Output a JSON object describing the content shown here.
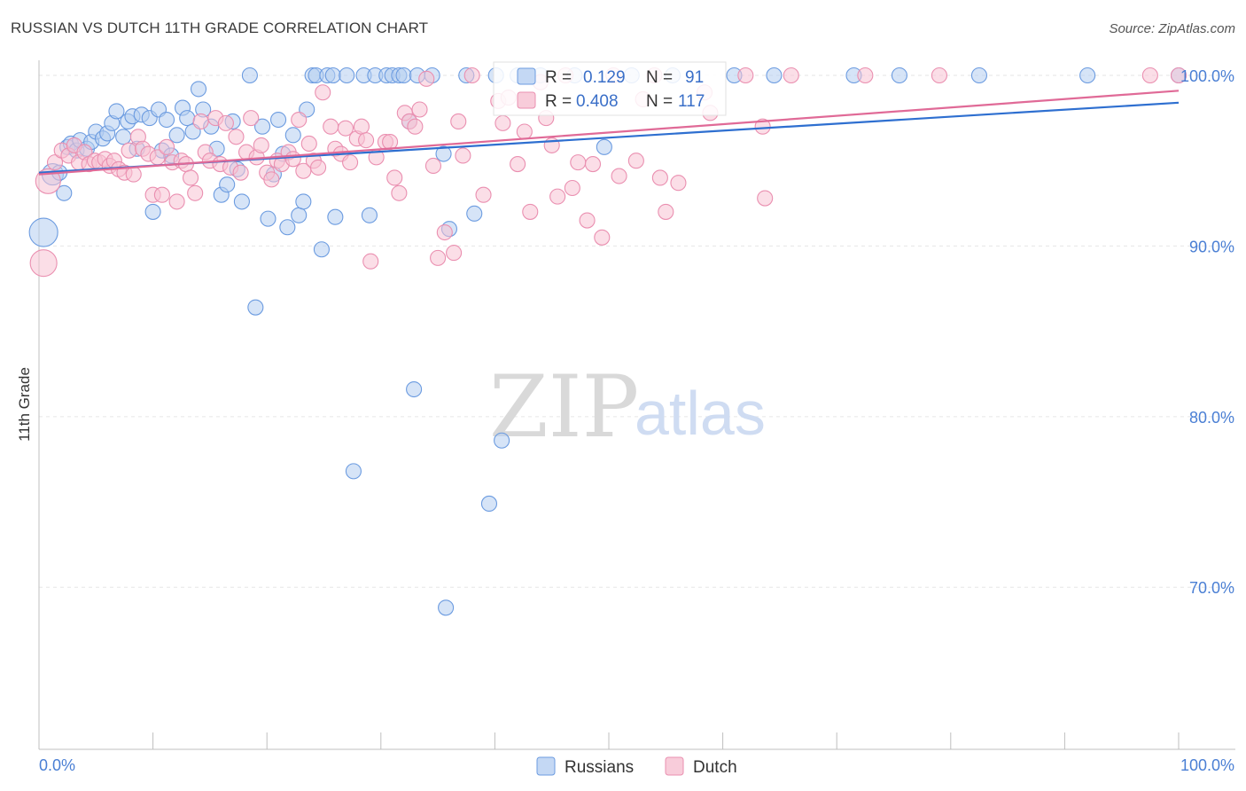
{
  "header": {
    "title": "RUSSIAN VS DUTCH 11TH GRADE CORRELATION CHART",
    "source": "Source: ZipAtlas.com"
  },
  "watermark": {
    "zip": "ZIP",
    "atlas": "atlas"
  },
  "legend_box": {
    "rows": [
      {
        "r_label": "R =",
        "r_value": "0.129",
        "n_label": "N =",
        "n_value": "91",
        "color": "#6b9be0"
      },
      {
        "r_label": "R =",
        "r_value": "0.408",
        "n_label": "N =",
        "n_value": "117",
        "color": "#ea8fb0"
      }
    ]
  },
  "bottom_legend": {
    "items": [
      "Russians",
      "Dutch"
    ]
  },
  "chart_data": {
    "type": "scatter",
    "title": "RUSSIAN VS DUTCH 11TH GRADE CORRELATION CHART",
    "xlabel": "",
    "ylabel": "11th Grade",
    "xlim": [
      0,
      100
    ],
    "ylim": [
      60.5,
      101.3
    ],
    "x_tick_labels": [
      {
        "value": 0,
        "label": "0.0%"
      },
      {
        "value": 100,
        "label": "100.0%"
      }
    ],
    "y_tick_labels": [
      {
        "value": 100,
        "label": "100.0%"
      },
      {
        "value": 90,
        "label": "90.0%"
      },
      {
        "value": 80,
        "label": "80.0%"
      },
      {
        "value": 70,
        "label": "70.0%"
      }
    ],
    "grid": true,
    "legend_position": "bottom",
    "colors": {
      "Russians": "#6b9be0",
      "Dutch": "#ea8fb0",
      "Russians_line": "#2e6fd0",
      "Dutch_line": "#e06a97"
    },
    "series": [
      {
        "name": "Russians",
        "R": 0.129,
        "N": 91,
        "trend": [
          [
            0,
            94.3
          ],
          [
            100,
            98.4
          ]
        ],
        "points": [
          [
            0.4,
            90.8
          ],
          [
            1.2,
            94.2
          ],
          [
            1.8,
            94.3
          ],
          [
            2.2,
            93.1
          ],
          [
            2.5,
            95.8
          ],
          [
            2.8,
            96.0
          ],
          [
            3.3,
            95.6
          ],
          [
            3.6,
            96.2
          ],
          [
            4.2,
            95.7
          ],
          [
            4.6,
            96.1
          ],
          [
            5.0,
            96.7
          ],
          [
            5.6,
            96.3
          ],
          [
            6.0,
            96.6
          ],
          [
            6.4,
            97.2
          ],
          [
            6.8,
            97.9
          ],
          [
            7.4,
            96.4
          ],
          [
            7.8,
            97.3
          ],
          [
            8.2,
            97.6
          ],
          [
            8.6,
            95.7
          ],
          [
            9.0,
            97.7
          ],
          [
            9.7,
            97.5
          ],
          [
            10.0,
            92.0
          ],
          [
            10.5,
            98.0
          ],
          [
            10.8,
            95.6
          ],
          [
            11.2,
            97.4
          ],
          [
            11.6,
            95.3
          ],
          [
            12.1,
            96.5
          ],
          [
            12.6,
            98.1
          ],
          [
            13.0,
            97.5
          ],
          [
            13.5,
            96.7
          ],
          [
            14.0,
            99.2
          ],
          [
            14.4,
            98.0
          ],
          [
            15.1,
            97.0
          ],
          [
            15.6,
            95.7
          ],
          [
            16.0,
            93.0
          ],
          [
            16.5,
            93.6
          ],
          [
            17.0,
            97.3
          ],
          [
            17.4,
            94.5
          ],
          [
            17.8,
            92.6
          ],
          [
            18.5,
            100.0
          ],
          [
            19.0,
            86.4
          ],
          [
            19.6,
            97.0
          ],
          [
            20.1,
            91.6
          ],
          [
            20.6,
            94.2
          ],
          [
            21.0,
            97.4
          ],
          [
            21.4,
            95.4
          ],
          [
            21.8,
            91.1
          ],
          [
            22.3,
            96.5
          ],
          [
            22.8,
            91.8
          ],
          [
            23.2,
            92.6
          ],
          [
            23.5,
            98.0
          ],
          [
            24.0,
            100.0
          ],
          [
            24.3,
            100.0
          ],
          [
            24.8,
            89.8
          ],
          [
            25.3,
            100.0
          ],
          [
            25.8,
            100.0
          ],
          [
            26.0,
            91.7
          ],
          [
            27.0,
            100.0
          ],
          [
            27.6,
            76.8
          ],
          [
            28.5,
            100.0
          ],
          [
            29.0,
            91.8
          ],
          [
            29.5,
            100.0
          ],
          [
            30.5,
            100.0
          ],
          [
            31.0,
            100.0
          ],
          [
            31.6,
            100.0
          ],
          [
            32.0,
            100.0
          ],
          [
            32.5,
            97.3
          ],
          [
            32.9,
            81.6
          ],
          [
            33.2,
            100.0
          ],
          [
            34.5,
            100.0
          ],
          [
            35.5,
            95.4
          ],
          [
            35.7,
            68.8
          ],
          [
            36.0,
            91.0
          ],
          [
            37.5,
            100.0
          ],
          [
            38.2,
            91.9
          ],
          [
            39.5,
            74.9
          ],
          [
            40.1,
            100.0
          ],
          [
            40.6,
            78.6
          ],
          [
            42.0,
            100.0
          ],
          [
            44.0,
            100.0
          ],
          [
            47.0,
            100.0
          ],
          [
            49.6,
            95.8
          ],
          [
            52.0,
            100.0
          ],
          [
            55.6,
            100.0
          ],
          [
            61.0,
            100.0
          ],
          [
            64.5,
            100.0
          ],
          [
            71.5,
            100.0
          ],
          [
            75.5,
            100.0
          ],
          [
            82.5,
            100.0
          ],
          [
            92.0,
            100.0
          ],
          [
            100.0,
            100.0
          ]
        ]
      },
      {
        "name": "Dutch",
        "R": 0.408,
        "N": 117,
        "trend": [
          [
            0,
            94.2
          ],
          [
            100,
            99.1
          ]
        ],
        "points": [
          [
            0.4,
            89.0
          ],
          [
            0.8,
            93.8
          ],
          [
            1.4,
            94.9
          ],
          [
            2.0,
            95.6
          ],
          [
            2.6,
            95.3
          ],
          [
            3.1,
            95.9
          ],
          [
            3.5,
            94.9
          ],
          [
            4.0,
            95.5
          ],
          [
            4.4,
            94.8
          ],
          [
            4.9,
            95.0
          ],
          [
            5.3,
            94.9
          ],
          [
            5.8,
            95.1
          ],
          [
            6.2,
            94.7
          ],
          [
            6.6,
            95.0
          ],
          [
            7.0,
            94.5
          ],
          [
            7.5,
            94.3
          ],
          [
            7.9,
            95.6
          ],
          [
            8.3,
            94.2
          ],
          [
            8.7,
            96.4
          ],
          [
            9.1,
            95.7
          ],
          [
            9.6,
            95.4
          ],
          [
            10.0,
            93.0
          ],
          [
            10.4,
            95.2
          ],
          [
            10.8,
            93.0
          ],
          [
            11.2,
            95.8
          ],
          [
            11.7,
            94.9
          ],
          [
            12.1,
            92.6
          ],
          [
            12.5,
            95.0
          ],
          [
            12.9,
            94.8
          ],
          [
            13.3,
            94.0
          ],
          [
            13.7,
            93.1
          ],
          [
            14.2,
            97.3
          ],
          [
            14.6,
            95.5
          ],
          [
            15.0,
            95.0
          ],
          [
            15.5,
            97.5
          ],
          [
            15.9,
            94.8
          ],
          [
            16.4,
            97.2
          ],
          [
            16.8,
            94.6
          ],
          [
            17.3,
            96.4
          ],
          [
            17.7,
            94.3
          ],
          [
            18.2,
            95.5
          ],
          [
            18.6,
            97.5
          ],
          [
            19.1,
            95.2
          ],
          [
            19.5,
            95.9
          ],
          [
            20.0,
            94.3
          ],
          [
            20.4,
            93.9
          ],
          [
            20.9,
            95.0
          ],
          [
            21.3,
            94.8
          ],
          [
            21.9,
            95.5
          ],
          [
            22.3,
            95.1
          ],
          [
            22.8,
            97.4
          ],
          [
            23.2,
            94.4
          ],
          [
            23.7,
            96.0
          ],
          [
            24.1,
            95.0
          ],
          [
            24.5,
            94.6
          ],
          [
            24.9,
            99.0
          ],
          [
            25.6,
            97.0
          ],
          [
            26.0,
            95.7
          ],
          [
            26.5,
            95.4
          ],
          [
            26.9,
            96.9
          ],
          [
            27.3,
            94.9
          ],
          [
            27.9,
            96.3
          ],
          [
            28.3,
            97.0
          ],
          [
            28.7,
            96.2
          ],
          [
            29.1,
            89.1
          ],
          [
            29.6,
            95.2
          ],
          [
            30.4,
            96.1
          ],
          [
            30.8,
            96.1
          ],
          [
            31.2,
            94.0
          ],
          [
            31.6,
            93.1
          ],
          [
            32.1,
            97.8
          ],
          [
            32.5,
            97.3
          ],
          [
            33.0,
            97.0
          ],
          [
            33.4,
            98.0
          ],
          [
            34.0,
            99.8
          ],
          [
            34.6,
            94.7
          ],
          [
            35.0,
            89.3
          ],
          [
            35.6,
            90.8
          ],
          [
            36.4,
            89.6
          ],
          [
            36.8,
            97.3
          ],
          [
            37.2,
            95.3
          ],
          [
            38.0,
            100.0
          ],
          [
            39.0,
            93.0
          ],
          [
            40.3,
            98.5
          ],
          [
            40.7,
            97.2
          ],
          [
            41.2,
            98.7
          ],
          [
            42.0,
            94.8
          ],
          [
            42.6,
            96.7
          ],
          [
            43.1,
            92.0
          ],
          [
            44.0,
            99.6
          ],
          [
            44.5,
            97.5
          ],
          [
            45.0,
            95.9
          ],
          [
            45.5,
            92.9
          ],
          [
            46.2,
            100.0
          ],
          [
            46.8,
            93.4
          ],
          [
            47.3,
            94.9
          ],
          [
            48.1,
            91.5
          ],
          [
            48.6,
            94.8
          ],
          [
            49.4,
            90.5
          ],
          [
            50.4,
            100.0
          ],
          [
            50.9,
            94.1
          ],
          [
            52.4,
            95.0
          ],
          [
            53.0,
            98.6
          ],
          [
            54.0,
            100.0
          ],
          [
            54.5,
            94.0
          ],
          [
            55.0,
            92.0
          ],
          [
            56.1,
            93.7
          ],
          [
            58.4,
            99.0
          ],
          [
            58.9,
            97.8
          ],
          [
            62.0,
            100.0
          ],
          [
            63.5,
            97.0
          ],
          [
            63.7,
            92.8
          ],
          [
            66.0,
            100.0
          ],
          [
            72.5,
            100.0
          ],
          [
            79.0,
            100.0
          ],
          [
            97.5,
            100.0
          ],
          [
            100.0,
            100.0
          ]
        ]
      }
    ]
  }
}
